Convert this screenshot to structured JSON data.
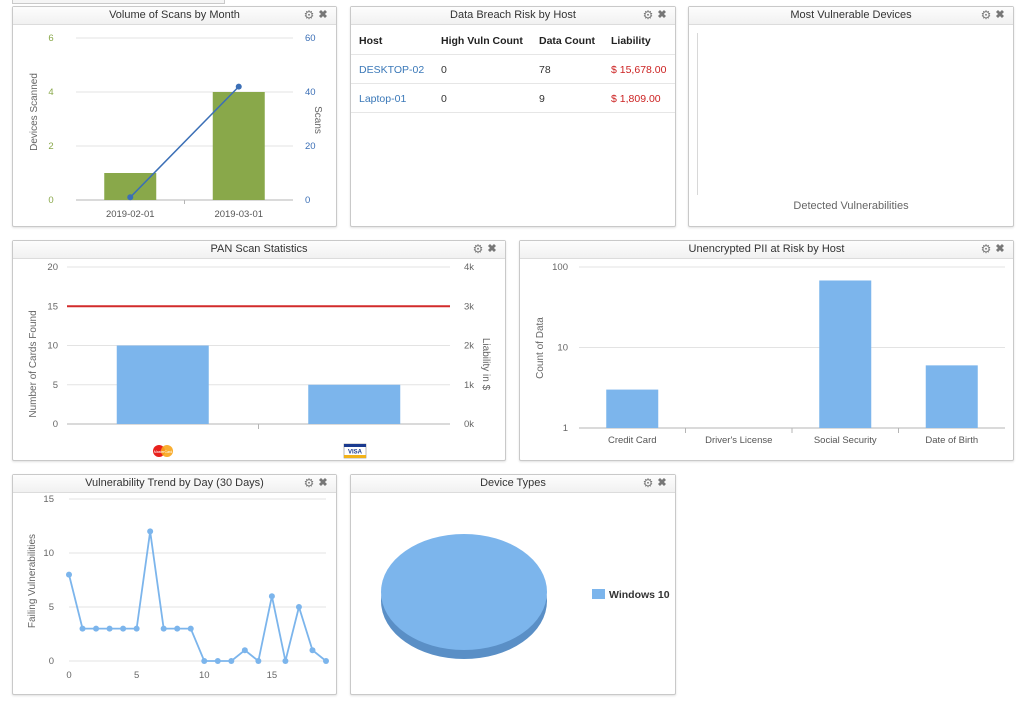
{
  "panels": {
    "volume_scans": {
      "title": "Volume of Scans by Month",
      "ylabel_left": "Devices Scanned",
      "ylabel_right": "Scans",
      "left_ticks": [
        "0",
        "2",
        "4",
        "6"
      ],
      "right_ticks": [
        "0",
        "20",
        "40",
        "60"
      ]
    },
    "breach_risk": {
      "title": "Data Breach Risk by Host",
      "columns": [
        "Host",
        "High Vuln Count",
        "Data Count",
        "Liability"
      ],
      "rows": [
        {
          "host": "DESKTOP-02",
          "high_vuln": "0",
          "data_count": "78",
          "liability": "$ 15,678.00"
        },
        {
          "host": "Laptop-01",
          "high_vuln": "0",
          "data_count": "9",
          "liability": "$ 1,809.00"
        }
      ]
    },
    "vulnerable_devices": {
      "title": "Most Vulnerable Devices",
      "xlabel": "Detected Vulnerabilities"
    },
    "pan_scan": {
      "title": "PAN Scan Statistics",
      "ylabel_left": "Number of Cards Found",
      "ylabel_right": "Liability in $",
      "left_ticks": [
        "0",
        "5",
        "10",
        "15",
        "20"
      ],
      "right_ticks": [
        "0k",
        "1k",
        "2k",
        "3k",
        "4k"
      ],
      "mastercard_text": "MasterCard",
      "visa_text": "VISA"
    },
    "pii_risk": {
      "title": "Unencrypted PII at Risk by Host",
      "ylabel": "Count of Data",
      "ticks": [
        "1",
        "10",
        "100"
      ]
    },
    "vuln_trend": {
      "title": "Vulnerability Trend by Day (30 Days)",
      "ylabel": "Failing Vulnerabilities",
      "y_ticks": [
        "0",
        "5",
        "10",
        "15"
      ],
      "x_ticks": [
        "0",
        "5",
        "10",
        "15"
      ]
    },
    "device_types": {
      "title": "Device Types",
      "legend": "Windows 10"
    }
  },
  "colors": {
    "green_bar": "#89a84a",
    "blue_line": "#3b6fb6",
    "light_blue": "#7cb5ec",
    "red_line": "#d22b2b",
    "pie": "#7cb5ec",
    "pie_edge": "#5a8fc6"
  },
  "icons": [
    "gear-icon",
    "close-icon",
    "mastercard-icon",
    "visa-icon"
  ],
  "chart_data": [
    {
      "type": "bar",
      "title": "Volume of Scans by Month",
      "categories": [
        "2019-02-01",
        "2019-03-01"
      ],
      "series": [
        {
          "name": "Devices Scanned",
          "type": "bar",
          "axis": "left",
          "values": [
            1,
            4
          ]
        },
        {
          "name": "Scans",
          "type": "line",
          "axis": "right",
          "values": [
            1,
            42
          ]
        }
      ],
      "ylabel": "Devices Scanned",
      "ylim": [
        0,
        6
      ],
      "y2label": "Scans",
      "y2lim": [
        0,
        60
      ]
    },
    {
      "type": "bar",
      "title": "PAN Scan Statistics",
      "categories": [
        "MasterCard",
        "VISA"
      ],
      "series": [
        {
          "name": "Number of Cards Found",
          "type": "bar",
          "values": [
            10,
            5
          ]
        },
        {
          "name": "Liability in $",
          "type": "line",
          "axis": "right",
          "values": [
            3000,
            3000
          ]
        }
      ],
      "ylabel": "Number of Cards Found",
      "ylim": [
        0,
        20
      ],
      "y2label": "Liability in $",
      "y2lim": [
        0,
        4000
      ]
    },
    {
      "type": "bar",
      "title": "Unencrypted PII at Risk by Host",
      "categories": [
        "Credit Card",
        "Driver's License",
        "Social Security",
        "Date of Birth"
      ],
      "values": [
        3,
        0,
        68,
        6
      ],
      "ylabel": "Count of Data",
      "y_scale": "log",
      "ylim": [
        1,
        100
      ]
    },
    {
      "type": "line",
      "title": "Vulnerability Trend by Day (30 Days)",
      "x": [
        0,
        1,
        2,
        3,
        4,
        5,
        6,
        7,
        8,
        9,
        10,
        11,
        12,
        13,
        14,
        15,
        16,
        17,
        18,
        19
      ],
      "values": [
        8,
        3,
        3,
        3,
        3,
        3,
        12,
        3,
        3,
        3,
        0,
        0,
        0,
        1,
        0,
        6,
        0,
        5,
        1,
        0
      ],
      "ylabel": "Failing Vulnerabilities",
      "ylim": [
        0,
        15
      ],
      "xlim": [
        0,
        19
      ]
    },
    {
      "type": "pie",
      "title": "Device Types",
      "categories": [
        "Windows 10"
      ],
      "values": [
        100
      ]
    }
  ]
}
